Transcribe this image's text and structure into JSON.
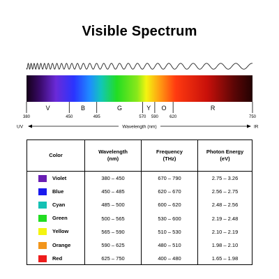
{
  "title": "Visible Spectrum",
  "spectrum": {
    "bands": [
      {
        "letter": "V",
        "start": 380,
        "end": 450
      },
      {
        "letter": "B",
        "start": 450,
        "end": 495
      },
      {
        "letter": "G",
        "start": 495,
        "end": 570
      },
      {
        "letter": "Y",
        "start": 570,
        "end": 590
      },
      {
        "letter": "O",
        "start": 590,
        "end": 620
      },
      {
        "letter": "R",
        "start": 620,
        "end": 750
      }
    ],
    "ticks": [
      380,
      450,
      495,
      570,
      590,
      620,
      750
    ],
    "axis": {
      "left_label": "UV",
      "right_label": "IR",
      "center_label": "Wavelength (nm)"
    }
  },
  "table": {
    "headers": {
      "color": "Color",
      "wavelength": "Wavelength",
      "wavelength_unit": "(nm)",
      "frequency": "Frequency",
      "frequency_unit": "(THz)",
      "energy": "Photon Energy",
      "energy_unit": "(eV)"
    },
    "rows": [
      {
        "name": "Violet",
        "swatch": "#6a1fb4",
        "wavelength": "380 – 450",
        "frequency": "670 – 790",
        "energy": "2.75 – 3.26"
      },
      {
        "name": "Blue",
        "swatch": "#1a1aee",
        "wavelength": "450 – 485",
        "frequency": "620 – 670",
        "energy": "2.56 – 2.75"
      },
      {
        "name": "Cyan",
        "swatch": "#14c1b4",
        "wavelength": "485 – 500",
        "frequency": "600 – 620",
        "energy": "2.48 – 2.56"
      },
      {
        "name": "Green",
        "swatch": "#22dd22",
        "wavelength": "500 – 565",
        "frequency": "530 – 600",
        "energy": "2.19 – 2.48"
      },
      {
        "name": "Yellow",
        "swatch": "#f4f410",
        "wavelength": "565 – 590",
        "frequency": "510 – 530",
        "energy": "2.10 – 2.19"
      },
      {
        "name": "Orange",
        "swatch": "#f2951b",
        "wavelength": "590 – 625",
        "frequency": "480 – 510",
        "energy": "1.98 – 2.10"
      },
      {
        "name": "Red",
        "swatch": "#ee1c1c",
        "wavelength": "625 – 750",
        "frequency": "400 – 480",
        "energy": "1.65 – 1.98"
      }
    ]
  }
}
